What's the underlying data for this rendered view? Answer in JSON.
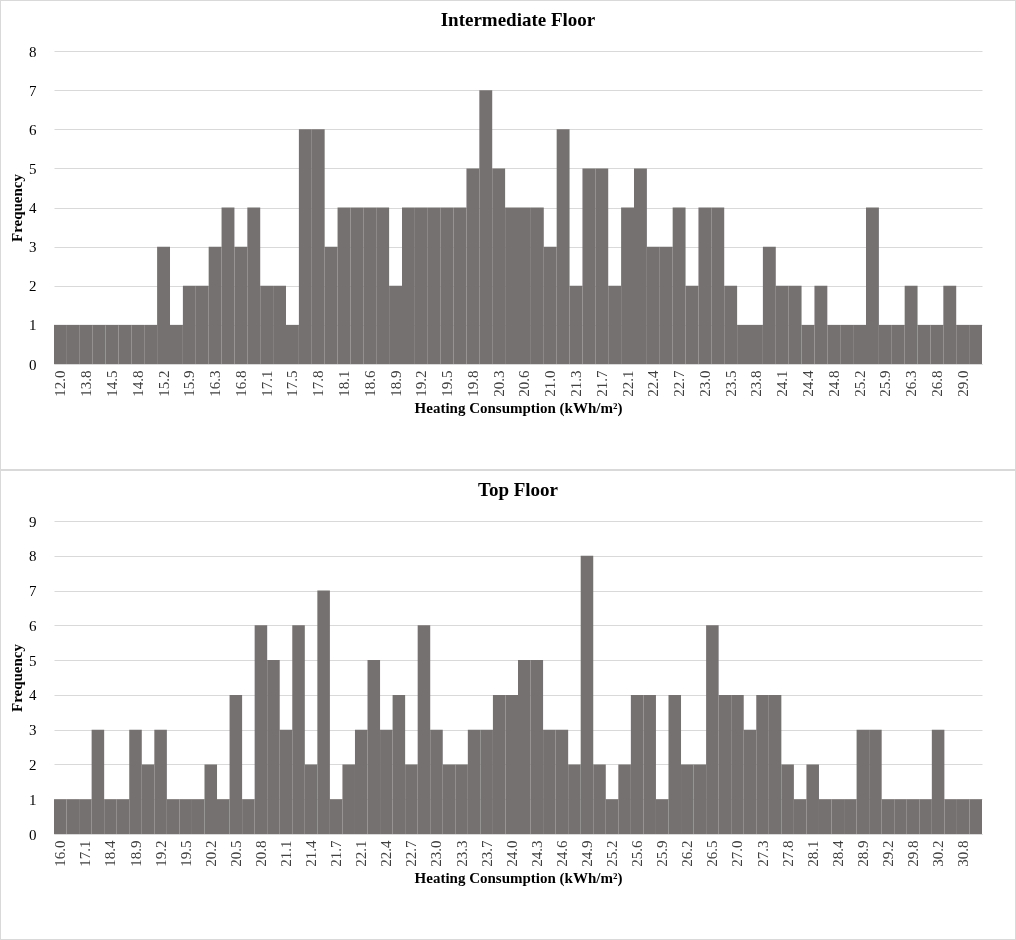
{
  "chart_data": [
    {
      "type": "bar",
      "title": "Intermediate Floor",
      "xlabel": "Heating Consumption  (kWh/m²)",
      "ylabel": "Frequency",
      "color": "#767171",
      "categories": [
        "12.0",
        null,
        "13.8",
        null,
        "14.5",
        null,
        "14.8",
        null,
        "15.2",
        null,
        "15.9",
        null,
        "16.3",
        null,
        "16.8",
        null,
        "17.1",
        null,
        "17.5",
        null,
        "17.8",
        null,
        "18.1",
        null,
        "18.6",
        null,
        "18.9",
        null,
        "19.2",
        null,
        "19.5",
        null,
        "19.8",
        null,
        "20.3",
        null,
        "20.6",
        null,
        "21.0",
        null,
        "21.3",
        null,
        "21.7",
        null,
        "22.1",
        null,
        "22.4",
        null,
        "22.7",
        null,
        "23.0",
        null,
        "23.5",
        null,
        "23.8",
        null,
        "24.1",
        null,
        "24.4",
        null,
        "24.8",
        null,
        "25.2",
        null,
        "25.9",
        null,
        "26.3",
        null,
        "26.8",
        null,
        "29.0",
        null
      ],
      "values": [
        1,
        1,
        1,
        1,
        1,
        1,
        1,
        1,
        3,
        1,
        2,
        2,
        3,
        4,
        3,
        4,
        2,
        2,
        1,
        6,
        6,
        3,
        4,
        4,
        4,
        4,
        2,
        4,
        4,
        4,
        4,
        4,
        5,
        7,
        5,
        4,
        4,
        4,
        3,
        6,
        2,
        5,
        5,
        2,
        4,
        5,
        3,
        3,
        4,
        2,
        4,
        4,
        2,
        1,
        1,
        3,
        2,
        2,
        1,
        2,
        1,
        1,
        1,
        4,
        1,
        1,
        2,
        1,
        1,
        2,
        1,
        1
      ],
      "ylim": [
        0,
        8
      ],
      "yticks": [
        0,
        1,
        2,
        3,
        4,
        5,
        6,
        7,
        8
      ],
      "grid": "y"
    },
    {
      "type": "bar",
      "title": "Top Floor",
      "xlabel": "Heating Consumption  (kWh/m²)",
      "ylabel": "Frequency",
      "color": "#767171",
      "categories": [
        "16.0",
        null,
        "17.1",
        null,
        "18.4",
        null,
        "18.9",
        null,
        "19.2",
        null,
        "19.5",
        null,
        "20.2",
        null,
        "20.5",
        null,
        "20.8",
        null,
        "21.1",
        null,
        "21.4",
        null,
        "21.7",
        null,
        "22.1",
        null,
        "22.4",
        null,
        "22.7",
        null,
        "23.0",
        null,
        "23.3",
        null,
        "23.7",
        null,
        "24.0",
        null,
        "24.3",
        null,
        "24.6",
        null,
        "24.9",
        null,
        "25.2",
        null,
        "25.6",
        null,
        "25.9",
        null,
        "26.2",
        null,
        "26.5",
        null,
        "27.0",
        null,
        "27.3",
        null,
        "27.8",
        null,
        "28.1",
        null,
        "28.4",
        null,
        "28.9",
        null,
        "29.2",
        null,
        "29.8",
        null,
        "30.2",
        null,
        "30.8",
        null
      ],
      "values": [
        1,
        1,
        1,
        3,
        1,
        1,
        3,
        2,
        3,
        1,
        1,
        1,
        2,
        1,
        4,
        1,
        6,
        5,
        3,
        6,
        2,
        7,
        1,
        2,
        3,
        5,
        3,
        4,
        2,
        6,
        3,
        2,
        2,
        3,
        3,
        4,
        4,
        5,
        5,
        3,
        3,
        2,
        8,
        2,
        1,
        2,
        4,
        4,
        1,
        4,
        2,
        2,
        6,
        4,
        4,
        3,
        4,
        4,
        2,
        1,
        2,
        1,
        1,
        1,
        3,
        3,
        1,
        1,
        1,
        1,
        3,
        1,
        1,
        1
      ],
      "ylim": [
        0,
        9
      ],
      "yticks": [
        0,
        1,
        2,
        3,
        4,
        5,
        6,
        7,
        8,
        9
      ],
      "grid": "y"
    }
  ]
}
